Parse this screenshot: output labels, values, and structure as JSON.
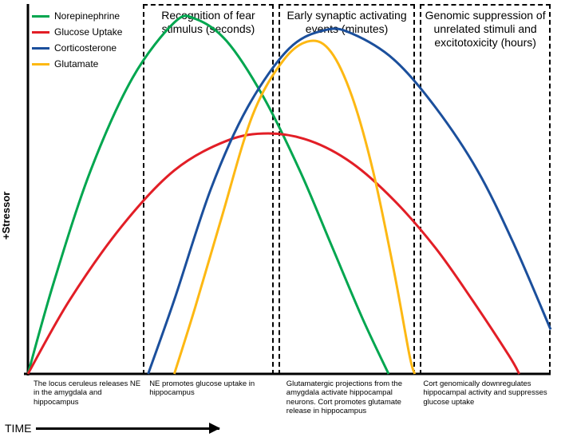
{
  "chart": {
    "type": "line",
    "background_color": "#ffffff",
    "axis_color": "#000000",
    "axis_width": 3,
    "line_width": 3,
    "xlim": [
      0,
      100
    ],
    "ylim": [
      0,
      100
    ],
    "y_axis_label": "+Stressor",
    "time_axis_label": "TIME",
    "label_fontsize": 13,
    "phase_border_style": "dashed",
    "phase_border_color": "#000000",
    "caption_fontsize": 9.5,
    "font_family": "Arial"
  },
  "legend": {
    "items": [
      {
        "label": "Norepinephrine",
        "color": "#00a64f"
      },
      {
        "label": "Glucose Uptake",
        "color": "#e21e26"
      },
      {
        "label": "Corticosterone",
        "color": "#1b4f9c"
      },
      {
        "label": "Glutamate",
        "color": "#fdb813"
      }
    ]
  },
  "series": {
    "norepinephrine": {
      "color": "#00a64f",
      "points": [
        [
          0,
          0
        ],
        [
          5,
          25
        ],
        [
          12,
          55
        ],
        [
          20,
          80
        ],
        [
          28,
          95
        ],
        [
          32,
          96
        ],
        [
          38,
          90
        ],
        [
          45,
          75
        ],
        [
          52,
          55
        ],
        [
          58,
          35
        ],
        [
          64,
          15
        ],
        [
          69,
          0
        ]
      ]
    },
    "glucose": {
      "color": "#e21e26",
      "points": [
        [
          0,
          0
        ],
        [
          8,
          20
        ],
        [
          18,
          40
        ],
        [
          28,
          55
        ],
        [
          38,
          63
        ],
        [
          46,
          65
        ],
        [
          54,
          63
        ],
        [
          62,
          57
        ],
        [
          70,
          47
        ],
        [
          78,
          34
        ],
        [
          85,
          20
        ],
        [
          92,
          5
        ],
        [
          94,
          0
        ]
      ]
    },
    "corticosterone": {
      "color": "#1b4f9c",
      "points": [
        [
          23,
          0
        ],
        [
          28,
          20
        ],
        [
          35,
          50
        ],
        [
          42,
          72
        ],
        [
          50,
          88
        ],
        [
          57,
          93
        ],
        [
          62,
          92
        ],
        [
          70,
          85
        ],
        [
          78,
          72
        ],
        [
          86,
          55
        ],
        [
          93,
          35
        ],
        [
          100,
          12
        ]
      ]
    },
    "glutamate": {
      "color": "#fdb813",
      "points": [
        [
          28,
          0
        ],
        [
          32,
          18
        ],
        [
          37,
          42
        ],
        [
          43,
          70
        ],
        [
          49,
          85
        ],
        [
          54,
          90
        ],
        [
          58,
          87
        ],
        [
          62,
          75
        ],
        [
          66,
          55
        ],
        [
          70,
          28
        ],
        [
          73,
          5
        ],
        [
          74,
          0
        ]
      ]
    }
  },
  "phases": [
    {
      "label": "Recognition of fear stimulus (seconds)",
      "x_start": 22,
      "x_end": 47
    },
    {
      "label": "Early synaptic activating events (minutes)",
      "x_start": 48,
      "x_end": 74
    },
    {
      "label": "Genomic suppression of unrelated stimuli and excitotoxicity (hours)",
      "x_start": 75,
      "x_end": 100
    }
  ],
  "captions": [
    {
      "text": "The locus ceruleus releases NE in the amygdala and hippocampus",
      "width": 22
    },
    {
      "text": "NE promotes glucose uptake in hippocampus",
      "width": 26
    },
    {
      "text": "Glutamatergic projections from the amygdala activate hippocampal neurons.  Cort promotes glutamate release in hippocampus",
      "width": 26
    },
    {
      "text": "Cort genomically downregulates hippocampal activity and suppresses glucose uptake",
      "width": 26
    }
  ]
}
